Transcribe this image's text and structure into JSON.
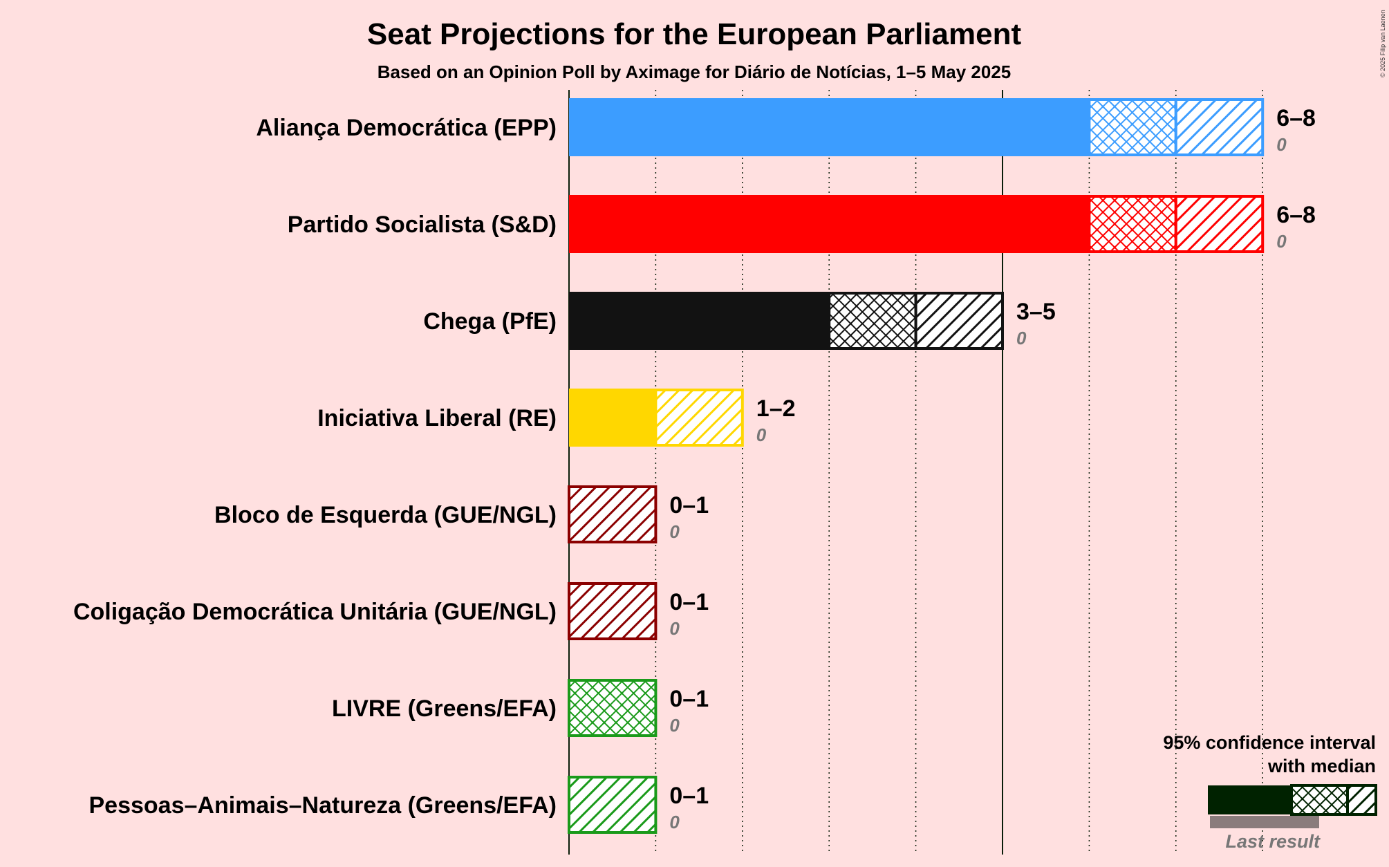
{
  "title": "Seat Projections for the European Parliament",
  "subtitle": "Based on an Opinion Poll by Aximage for Diário de Notícias, 1–5 May 2025",
  "copyright": "© 2025 Filip van Laenen",
  "legend": {
    "line1": "95% confidence interval",
    "line2": "with median",
    "last_result": "Last result"
  },
  "chart_data": {
    "type": "bar",
    "orientation": "horizontal",
    "xlim": [
      0,
      8
    ],
    "grid_lines": "dotted, every 1 seat; solid at 0 and 5",
    "categories": [
      "Aliança Democrática (EPP)",
      "Partido Socialista (S&D)",
      "Chega (PfE)",
      "Iniciativa Liberal (RE)",
      "Bloco de Esquerda (GUE/NGL)",
      "Coligação Democrática Unitária (GUE/NGL)",
      "LIVRE (Greens/EFA)",
      "Pessoas–Animais–Natureza (Greens/EFA)"
    ],
    "series": [
      {
        "party": "Aliança Democrática (EPP)",
        "low": 6,
        "median": 7,
        "high": 8,
        "range_label": "6–8",
        "last_result": 0,
        "last_label": "0",
        "color": "#3C9DFF"
      },
      {
        "party": "Partido Socialista (S&D)",
        "low": 6,
        "median": 7,
        "high": 8,
        "range_label": "6–8",
        "last_result": 0,
        "last_label": "0",
        "color": "#FF0000"
      },
      {
        "party": "Chega (PfE)",
        "low": 3,
        "median": 4,
        "high": 5,
        "range_label": "3–5",
        "last_result": 0,
        "last_label": "0",
        "color": "#121212"
      },
      {
        "party": "Iniciativa Liberal (RE)",
        "low": 1,
        "median": 1,
        "high": 2,
        "range_label": "1–2",
        "last_result": 0,
        "last_label": "0",
        "color": "#FFD700"
      },
      {
        "party": "Bloco de Esquerda (GUE/NGL)",
        "low": 0,
        "median": 0,
        "high": 1,
        "range_label": "0–1",
        "last_result": 0,
        "last_label": "0",
        "color": "#8B0000"
      },
      {
        "party": "Coligação Democrática Unitária (GUE/NGL)",
        "low": 0,
        "median": 0,
        "high": 1,
        "range_label": "0–1",
        "last_result": 0,
        "last_label": "0",
        "color": "#8B0000"
      },
      {
        "party": "LIVRE (Greens/EFA)",
        "low": 0,
        "median": 1,
        "high": 1,
        "range_label": "0–1",
        "last_result": 0,
        "last_label": "0",
        "color": "#1A9A1A"
      },
      {
        "party": "Pessoas–Animais–Natureza (Greens/EFA)",
        "low": 0,
        "median": 0,
        "high": 1,
        "range_label": "0–1",
        "last_result": 0,
        "last_label": "0",
        "color": "#1A9A1A"
      }
    ]
  }
}
